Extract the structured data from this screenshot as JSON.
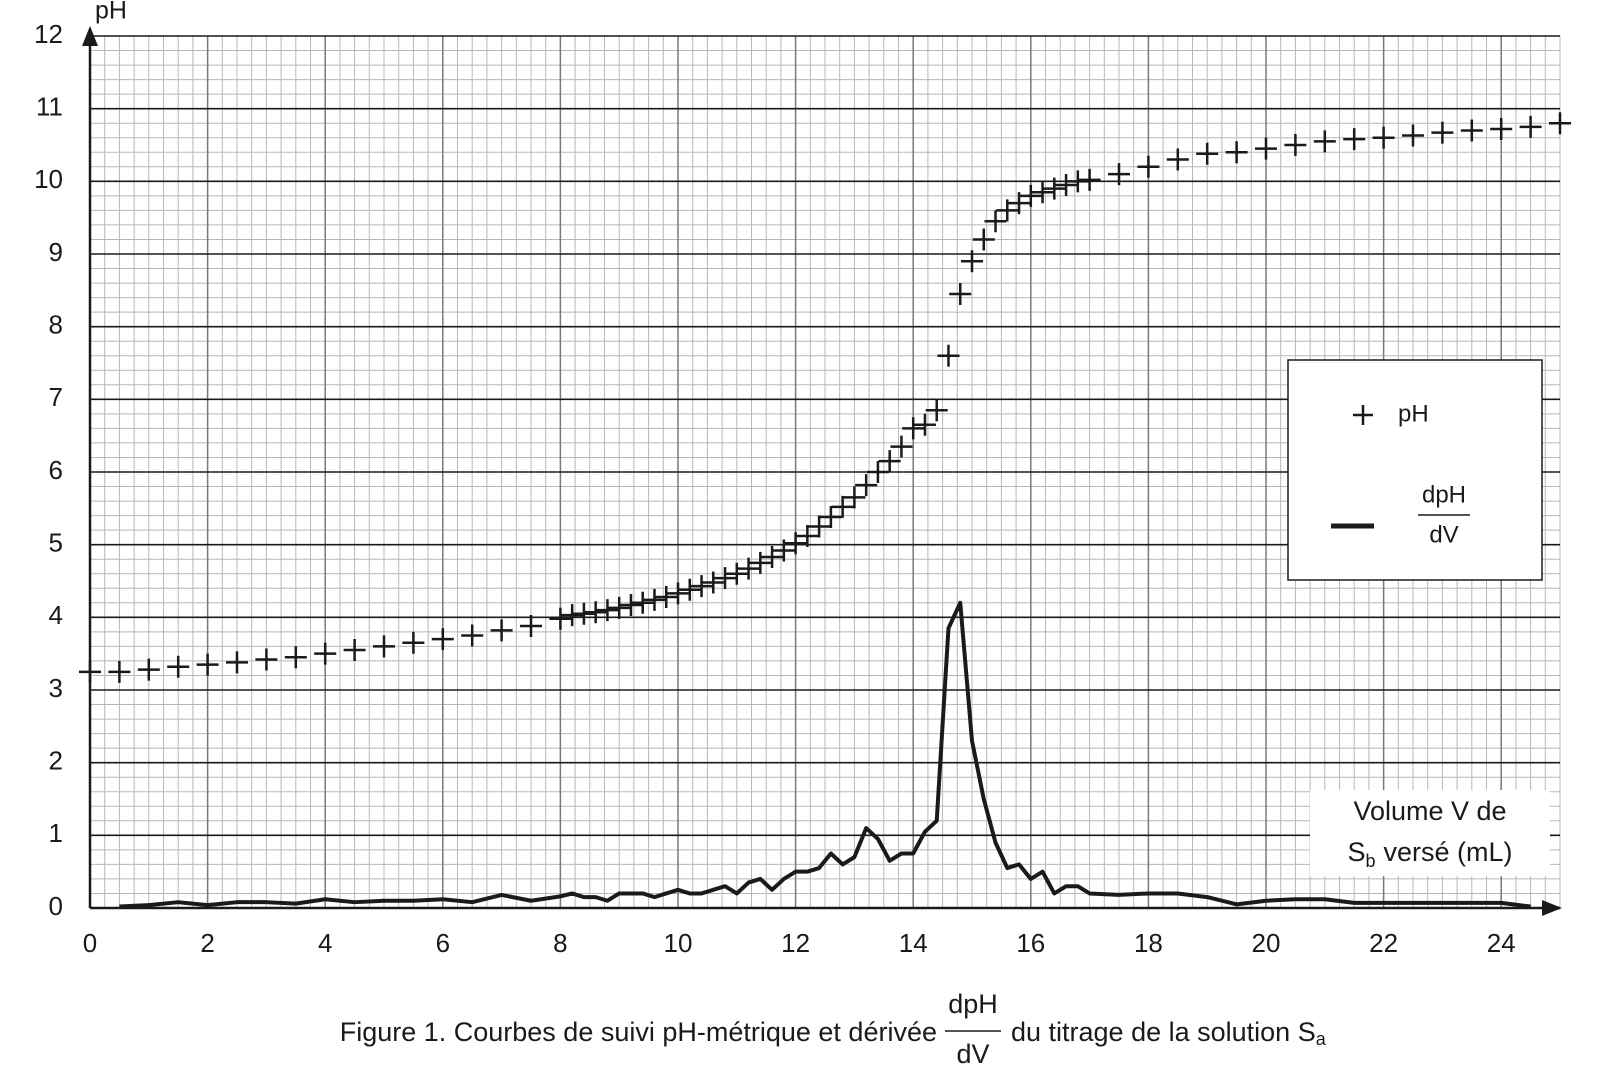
{
  "chart_data": {
    "type": "scatter",
    "y_label": "pH",
    "x_annotation": {
      "line1": "Volume V de",
      "line2_base": "S",
      "line2_sub": "b",
      "line2_rest": "versé (mL)"
    },
    "caption": {
      "before": "Figure 1. Courbes de suivi pH-métrique et dérivée",
      "fraction": {
        "numerator": "dpH",
        "denominator": "dV"
      },
      "after": "du titrage de la solution S",
      "subscript": "a"
    },
    "xlim": [
      0,
      25
    ],
    "ylim": [
      0,
      12
    ],
    "xticks": [
      0,
      2,
      4,
      6,
      8,
      10,
      12,
      14,
      16,
      18,
      20,
      22,
      24
    ],
    "yticks": [
      0,
      1,
      2,
      3,
      4,
      5,
      6,
      7,
      8,
      9,
      10,
      11,
      12
    ],
    "grid": true,
    "legend": "right",
    "series": [
      {
        "name": "pH",
        "type": "scatter",
        "marker": "+",
        "color": "#1a1a1a",
        "x": [
          0,
          0.5,
          1,
          1.5,
          2,
          2.5,
          3,
          3.5,
          4,
          4.5,
          5,
          5.5,
          6,
          6.5,
          7,
          7.5,
          8,
          8.2,
          8.4,
          8.6,
          8.8,
          9,
          9.2,
          9.4,
          9.6,
          9.8,
          10,
          10.2,
          10.4,
          10.6,
          10.8,
          11,
          11.2,
          11.4,
          11.6,
          11.8,
          12,
          12.2,
          12.4,
          12.6,
          12.8,
          13,
          13.2,
          13.4,
          13.6,
          13.8,
          14,
          14.2,
          14.4,
          14.6,
          14.8,
          15,
          15.2,
          15.4,
          15.6,
          15.8,
          16,
          16.2,
          16.4,
          16.6,
          16.8,
          17,
          17.5,
          18,
          18.5,
          19,
          19.5,
          20,
          20.5,
          21,
          21.5,
          22,
          22.5,
          23,
          23.5,
          24,
          24.5,
          25
        ],
        "values": [
          3.25,
          3.25,
          3.28,
          3.32,
          3.35,
          3.38,
          3.42,
          3.45,
          3.5,
          3.55,
          3.6,
          3.65,
          3.7,
          3.75,
          3.82,
          3.88,
          3.98,
          4.03,
          4.05,
          4.07,
          4.1,
          4.13,
          4.17,
          4.2,
          4.24,
          4.28,
          4.33,
          4.38,
          4.43,
          4.48,
          4.54,
          4.6,
          4.67,
          4.75,
          4.83,
          4.92,
          5.02,
          5.12,
          5.25,
          5.38,
          5.52,
          5.65,
          5.82,
          6.0,
          6.15,
          6.35,
          6.6,
          6.65,
          6.85,
          7.6,
          8.45,
          8.9,
          9.2,
          9.45,
          9.6,
          9.7,
          9.8,
          9.85,
          9.9,
          9.95,
          10.0,
          10.02,
          10.1,
          10.2,
          10.3,
          10.38,
          10.4,
          10.45,
          10.5,
          10.55,
          10.58,
          10.6,
          10.63,
          10.67,
          10.7,
          10.72,
          10.75,
          10.8
        ]
      },
      {
        "name": {
          "numerator": "dpH",
          "denominator": "dV"
        },
        "type": "line",
        "color": "#1a1a1a",
        "x": [
          0.5,
          1,
          1.5,
          2,
          2.5,
          3,
          3.5,
          4,
          4.5,
          5,
          5.5,
          6,
          6.5,
          7,
          7.5,
          8,
          8.2,
          8.4,
          8.6,
          8.8,
          9,
          9.2,
          9.4,
          9.6,
          9.8,
          10,
          10.2,
          10.4,
          10.6,
          10.8,
          11,
          11.2,
          11.4,
          11.6,
          11.8,
          12,
          12.2,
          12.4,
          12.6,
          12.8,
          13,
          13.2,
          13.4,
          13.6,
          13.8,
          14,
          14.2,
          14.4,
          14.6,
          14.8,
          15,
          15.2,
          15.4,
          15.6,
          15.8,
          16,
          16.2,
          16.4,
          16.6,
          16.8,
          17,
          17.5,
          18,
          18.5,
          19,
          19.5,
          20,
          20.5,
          21,
          21.5,
          22,
          22.5,
          23,
          23.5,
          24,
          24.5
        ],
        "values": [
          0.02,
          0.04,
          0.08,
          0.04,
          0.08,
          0.08,
          0.06,
          0.12,
          0.08,
          0.1,
          0.1,
          0.12,
          0.08,
          0.18,
          0.1,
          0.16,
          0.2,
          0.15,
          0.15,
          0.1,
          0.2,
          0.2,
          0.2,
          0.15,
          0.2,
          0.25,
          0.2,
          0.2,
          0.25,
          0.3,
          0.2,
          0.35,
          0.4,
          0.25,
          0.4,
          0.5,
          0.5,
          0.55,
          0.75,
          0.6,
          0.7,
          1.1,
          0.95,
          0.65,
          0.75,
          0.75,
          1.05,
          1.2,
          3.85,
          4.2,
          2.3,
          1.5,
          0.9,
          0.55,
          0.6,
          0.4,
          0.5,
          0.2,
          0.3,
          0.3,
          0.2,
          0.18,
          0.2,
          0.2,
          0.15,
          0.05,
          0.1,
          0.12,
          0.12,
          0.07,
          0.07,
          0.07,
          0.07,
          0.07,
          0.07,
          0.02
        ]
      }
    ]
  }
}
